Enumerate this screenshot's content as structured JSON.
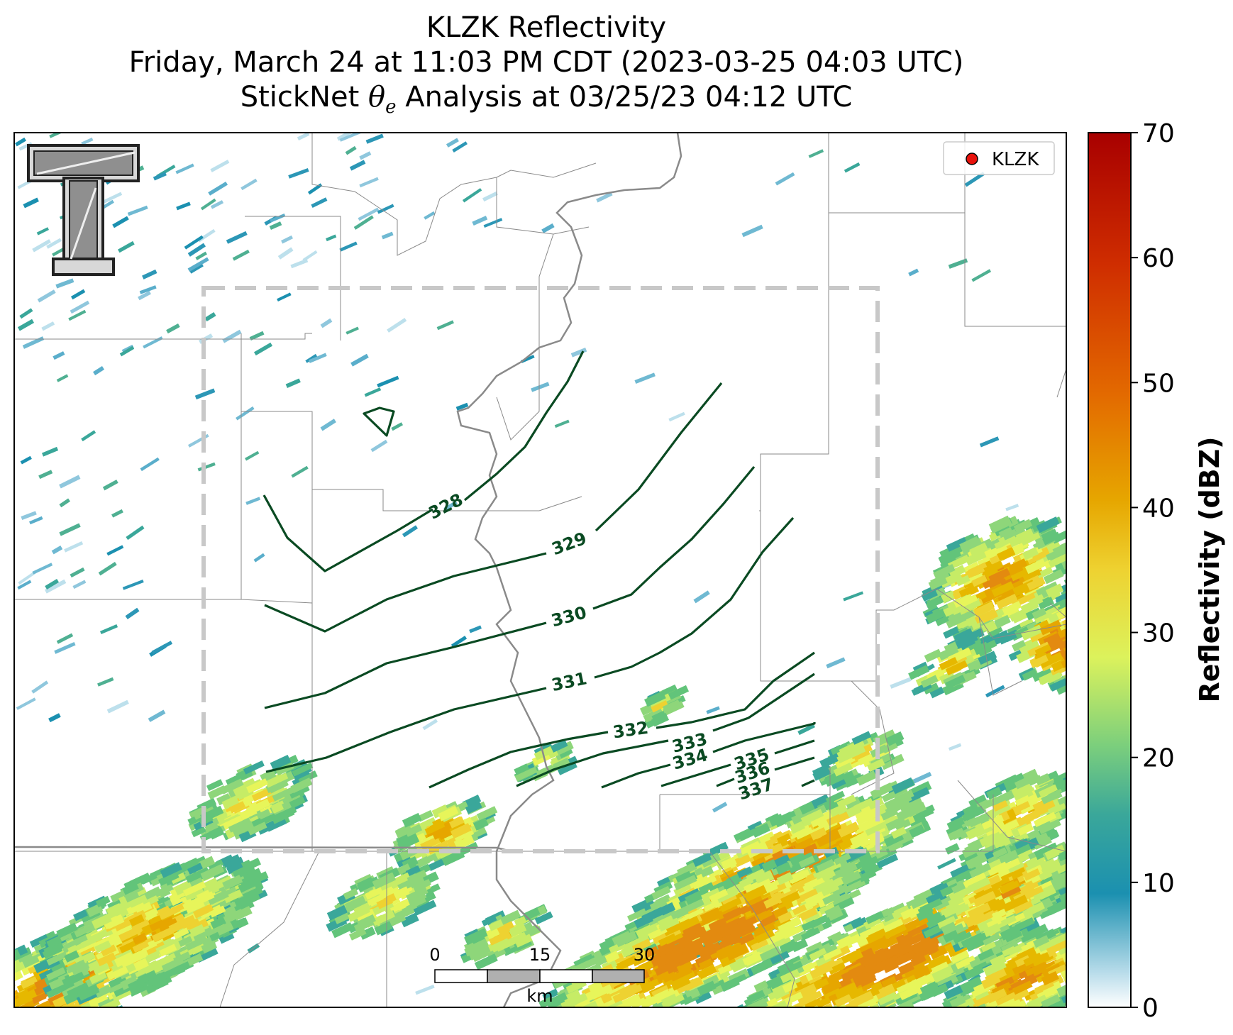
{
  "title": {
    "line1": "KLZK Reflectivity",
    "line2": "Friday, March 24 at 11:03 PM CDT (2023-03-25 04:03 UTC)",
    "line3_prefix": "StickNet ",
    "line3_symbol": "θ",
    "line3_sub": "e",
    "line3_suffix": " Analysis at 03/25/23 04:12 UTC"
  },
  "legend": {
    "label": "KLZK",
    "marker_color": "#e8120c"
  },
  "logo": {
    "name": "texas-tech-double-t-logo",
    "text": "TT"
  },
  "colorbar": {
    "label": "Reflectivity (dBZ)",
    "ticks": [
      "0",
      "10",
      "20",
      "30",
      "40",
      "50",
      "60",
      "70"
    ],
    "range": [
      0,
      70
    ],
    "colors": [
      "#ffffff",
      "#1b90b0",
      "#62c47a",
      "#e7f55a",
      "#e6b800",
      "#e36a00",
      "#a80000"
    ]
  },
  "scalebar": {
    "ticks": [
      "0",
      "15",
      "30"
    ],
    "unit": "km"
  },
  "contours": {
    "color": "#0a4a22",
    "labels": [
      "328",
      "329",
      "330",
      "331",
      "332",
      "333",
      "334",
      "335",
      "336",
      "337"
    ]
  },
  "dashed_box_color": "#c8c8c8"
}
